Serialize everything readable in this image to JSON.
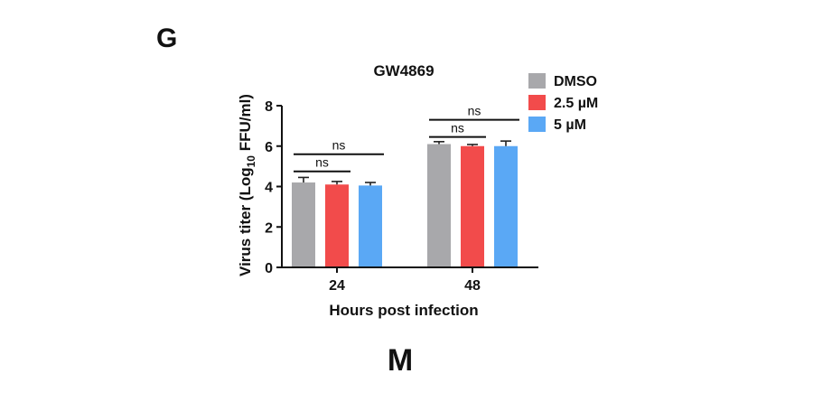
{
  "panel_labels": {
    "top": "G",
    "bottom": "M"
  },
  "chart_data": {
    "type": "bar",
    "title": "GW4869",
    "xlabel": "Hours post infection",
    "ylabel_main": "Virus titer (Log",
    "ylabel_sub": "10",
    "ylabel_end": " FFU/ml)",
    "categories": [
      "24",
      "48"
    ],
    "series": [
      {
        "name": "DMSO",
        "color": "#a8a8ab",
        "values": [
          4.2,
          6.1
        ],
        "errors": [
          0.25,
          0.12
        ]
      },
      {
        "name": "2.5 µM",
        "color": "#f24b4b",
        "values": [
          4.1,
          6.0
        ],
        "errors": [
          0.15,
          0.08
        ]
      },
      {
        "name": "5 µM",
        "color": "#5aa8f5",
        "values": [
          4.05,
          6.0
        ],
        "errors": [
          0.15,
          0.25
        ]
      }
    ],
    "ylim": [
      0,
      8
    ],
    "yticks": [
      "0",
      "2",
      "4",
      "6",
      "8"
    ],
    "grid": false,
    "legend_position": "top-right",
    "significance": [
      {
        "category": "24",
        "from_series": 0,
        "to_series": 1,
        "label": "ns",
        "level": 4.75
      },
      {
        "category": "24",
        "from_series": 0,
        "to_series": 2,
        "label": "ns",
        "level": 5.6
      },
      {
        "category": "48",
        "from_series": 0,
        "to_series": 1,
        "label": "ns",
        "level": 6.45
      },
      {
        "category": "48",
        "from_series": 0,
        "to_series": 2,
        "label": "ns",
        "level": 7.3
      }
    ]
  }
}
